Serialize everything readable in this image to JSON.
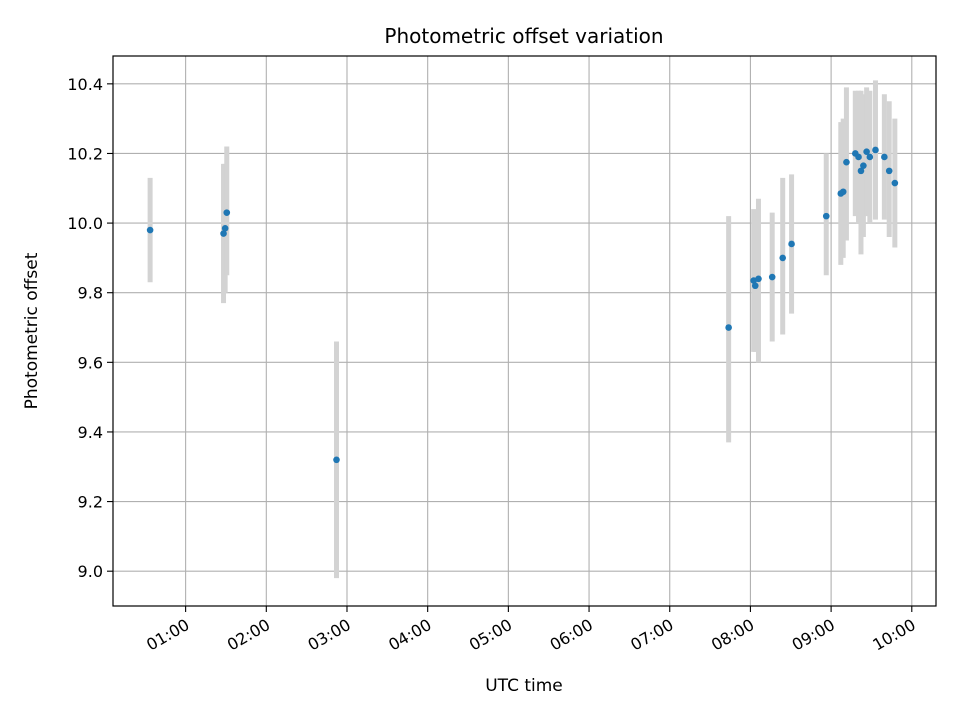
{
  "chart_data": {
    "type": "scatter",
    "title": "Photometric offset variation",
    "xlabel": "UTC time",
    "ylabel": "Photometric offset",
    "x_unit": "hours UTC",
    "xlim": [
      0.1,
      10.3
    ],
    "ylim": [
      8.9,
      10.48
    ],
    "grid": true,
    "point_color": "#1f77b4",
    "errorbar_color": "#d3d3d3",
    "x_ticks": [
      {
        "value": 1,
        "label": "01:00"
      },
      {
        "value": 2,
        "label": "02:00"
      },
      {
        "value": 3,
        "label": "03:00"
      },
      {
        "value": 4,
        "label": "04:00"
      },
      {
        "value": 5,
        "label": "05:00"
      },
      {
        "value": 6,
        "label": "06:00"
      },
      {
        "value": 7,
        "label": "07:00"
      },
      {
        "value": 8,
        "label": "08:00"
      },
      {
        "value": 9,
        "label": "09:00"
      },
      {
        "value": 10,
        "label": "10:00"
      }
    ],
    "y_ticks": [
      {
        "value": 9.0,
        "label": "9.0"
      },
      {
        "value": 9.2,
        "label": "9.2"
      },
      {
        "value": 9.4,
        "label": "9.4"
      },
      {
        "value": 9.6,
        "label": "9.6"
      },
      {
        "value": 9.8,
        "label": "9.8"
      },
      {
        "value": 10.0,
        "label": "10.0"
      },
      {
        "value": 10.2,
        "label": "10.2"
      },
      {
        "value": 10.4,
        "label": "10.4"
      }
    ],
    "points": [
      {
        "x": 0.56,
        "y": 9.98,
        "err_low": 9.83,
        "err_high": 10.13
      },
      {
        "x": 1.47,
        "y": 9.97,
        "err_low": 9.77,
        "err_high": 10.17
      },
      {
        "x": 1.49,
        "y": 9.985,
        "err_low": 9.8,
        "err_high": 10.17
      },
      {
        "x": 1.51,
        "y": 10.03,
        "err_low": 9.85,
        "err_high": 10.22
      },
      {
        "x": 2.87,
        "y": 9.32,
        "err_low": 8.98,
        "err_high": 9.66
      },
      {
        "x": 7.73,
        "y": 9.7,
        "err_low": 9.37,
        "err_high": 10.02
      },
      {
        "x": 8.04,
        "y": 9.835,
        "err_low": 9.63,
        "err_high": 10.04
      },
      {
        "x": 8.06,
        "y": 9.82,
        "err_low": 9.63,
        "err_high": 10.01
      },
      {
        "x": 8.1,
        "y": 9.84,
        "err_low": 9.6,
        "err_high": 10.07
      },
      {
        "x": 8.27,
        "y": 9.845,
        "err_low": 9.66,
        "err_high": 10.03
      },
      {
        "x": 8.4,
        "y": 9.9,
        "err_low": 9.68,
        "err_high": 10.13
      },
      {
        "x": 8.51,
        "y": 9.94,
        "err_low": 9.74,
        "err_high": 10.14
      },
      {
        "x": 8.94,
        "y": 10.02,
        "err_low": 9.85,
        "err_high": 10.2
      },
      {
        "x": 9.12,
        "y": 10.085,
        "err_low": 9.88,
        "err_high": 10.29
      },
      {
        "x": 9.15,
        "y": 10.09,
        "err_low": 9.9,
        "err_high": 10.3
      },
      {
        "x": 9.19,
        "y": 10.175,
        "err_low": 9.95,
        "err_high": 10.39
      },
      {
        "x": 9.3,
        "y": 10.2,
        "err_low": 10.02,
        "err_high": 10.38
      },
      {
        "x": 9.34,
        "y": 10.19,
        "err_low": 10.0,
        "err_high": 10.38
      },
      {
        "x": 9.37,
        "y": 10.15,
        "err_low": 9.91,
        "err_high": 10.38
      },
      {
        "x": 9.4,
        "y": 10.165,
        "err_low": 9.96,
        "err_high": 10.37
      },
      {
        "x": 9.44,
        "y": 10.205,
        "err_low": 10.02,
        "err_high": 10.39
      },
      {
        "x": 9.48,
        "y": 10.19,
        "err_low": 10.0,
        "err_high": 10.38
      },
      {
        "x": 9.55,
        "y": 10.21,
        "err_low": 10.01,
        "err_high": 10.41
      },
      {
        "x": 9.66,
        "y": 10.19,
        "err_low": 10.01,
        "err_high": 10.37
      },
      {
        "x": 9.72,
        "y": 10.15,
        "err_low": 9.96,
        "err_high": 10.35
      },
      {
        "x": 9.79,
        "y": 10.115,
        "err_low": 9.93,
        "err_high": 10.3
      }
    ]
  }
}
